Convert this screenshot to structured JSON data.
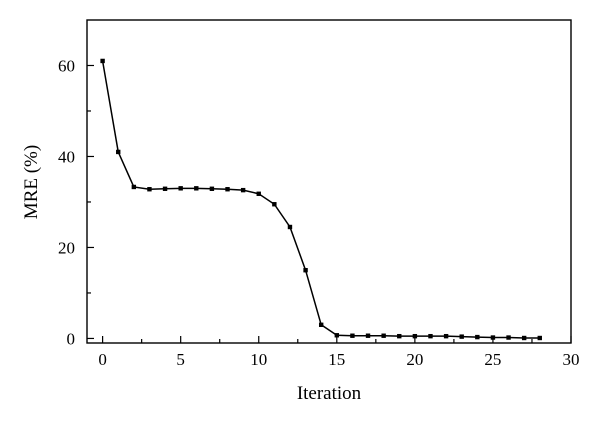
{
  "chart_data": {
    "type": "line",
    "title": "",
    "xlabel": "Iteration",
    "ylabel": "MRE (%)",
    "xlim": [
      -1,
      30
    ],
    "ylim": [
      -1,
      70
    ],
    "xticks": [
      0,
      5,
      10,
      15,
      20,
      25,
      30
    ],
    "yticks": [
      0,
      20,
      40,
      60
    ],
    "grid": false,
    "legend": "none",
    "series": [
      {
        "x": [
          0,
          1,
          2,
          3,
          4,
          5,
          6,
          7,
          8,
          9,
          10,
          11,
          12,
          13,
          14,
          15,
          16,
          17,
          18,
          19,
          20,
          21,
          22,
          23,
          24,
          25,
          26,
          27,
          28
        ],
        "y": [
          61,
          41,
          33.3,
          32.8,
          32.9,
          33,
          33,
          32.9,
          32.8,
          32.6,
          31.8,
          29.5,
          24.5,
          15,
          3,
          0.7,
          0.6,
          0.6,
          0.6,
          0.5,
          0.5,
          0.5,
          0.5,
          0.4,
          0.3,
          0.2,
          0.2,
          0.1,
          0.1
        ],
        "color": "#000000",
        "marker": "square"
      }
    ]
  }
}
